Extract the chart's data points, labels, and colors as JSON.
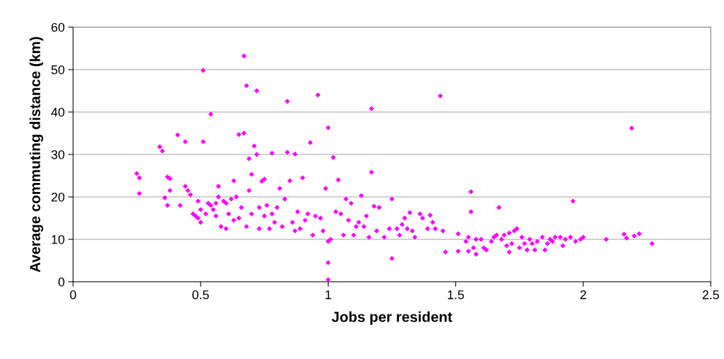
{
  "chart_data": {
    "type": "scatter",
    "xlabel": "Jobs per resident",
    "ylabel": "Average commuting distance (km)",
    "xlim": [
      0,
      2.5
    ],
    "xticks": [
      0,
      0.5,
      1,
      1.5,
      2,
      2.5
    ],
    "ylim": [
      0,
      60
    ],
    "yticks": [
      0,
      10,
      20,
      30,
      40,
      50,
      60
    ],
    "grid": "y",
    "marker": "diamond",
    "series": [
      {
        "color": "#ff00ff",
        "x": [
          0.25,
          0.26,
          0.26,
          0.34,
          0.35,
          0.36,
          0.37,
          0.37,
          0.38,
          0.38,
          0.41,
          0.42,
          0.44,
          0.44,
          0.45,
          0.46,
          0.47,
          0.48,
          0.49,
          0.49,
          0.5,
          0.5,
          0.51,
          0.51,
          0.52,
          0.53,
          0.54,
          0.54,
          0.55,
          0.56,
          0.56,
          0.57,
          0.57,
          0.58,
          0.59,
          0.6,
          0.6,
          0.61,
          0.62,
          0.63,
          0.63,
          0.64,
          0.65,
          0.65,
          0.66,
          0.67,
          0.67,
          0.68,
          0.68,
          0.69,
          0.69,
          0.7,
          0.7,
          0.71,
          0.72,
          0.72,
          0.73,
          0.73,
          0.74,
          0.75,
          0.75,
          0.76,
          0.77,
          0.78,
          0.78,
          0.79,
          0.8,
          0.81,
          0.82,
          0.83,
          0.84,
          0.84,
          0.85,
          0.86,
          0.87,
          0.87,
          0.88,
          0.89,
          0.9,
          0.91,
          0.92,
          0.93,
          0.94,
          0.95,
          0.96,
          0.97,
          0.98,
          0.99,
          1.0,
          1.0,
          1.0,
          1.0,
          1.01,
          1.02,
          1.03,
          1.04,
          1.05,
          1.06,
          1.07,
          1.08,
          1.09,
          1.1,
          1.11,
          1.12,
          1.13,
          1.14,
          1.15,
          1.16,
          1.17,
          1.17,
          1.18,
          1.19,
          1.2,
          1.22,
          1.24,
          1.25,
          1.25,
          1.27,
          1.28,
          1.29,
          1.3,
          1.31,
          1.32,
          1.33,
          1.34,
          1.36,
          1.37,
          1.39,
          1.4,
          1.41,
          1.42,
          1.44,
          1.45,
          1.46,
          1.51,
          1.51,
          1.54,
          1.55,
          1.55,
          1.56,
          1.56,
          1.57,
          1.58,
          1.58,
          1.6,
          1.61,
          1.62,
          1.64,
          1.65,
          1.66,
          1.67,
          1.68,
          1.69,
          1.7,
          1.71,
          1.71,
          1.72,
          1.73,
          1.74,
          1.75,
          1.76,
          1.77,
          1.78,
          1.79,
          1.8,
          1.81,
          1.82,
          1.84,
          1.85,
          1.86,
          1.87,
          1.88,
          1.89,
          1.91,
          1.92,
          1.93,
          1.95,
          1.96,
          1.97,
          1.99,
          2.0,
          2.09,
          2.16,
          2.17,
          2.19,
          2.2,
          2.22,
          2.27
        ],
        "values": [
          25.5,
          24.5,
          20.8,
          31.8,
          30.8,
          19.8,
          18,
          24.7,
          24.3,
          21.5,
          34.6,
          18,
          22.5,
          33,
          21.5,
          20.5,
          16,
          15.5,
          19,
          15,
          14,
          17,
          49.8,
          33,
          16,
          18.5,
          18,
          39.5,
          17,
          15.5,
          18.5,
          22.5,
          20,
          13,
          19,
          12.5,
          18.5,
          16,
          19.5,
          14.5,
          23.8,
          20,
          34.7,
          15,
          17.5,
          53.2,
          35,
          46.2,
          13,
          29,
          21.5,
          25.3,
          16,
          32,
          45,
          30,
          17.5,
          12.5,
          23.7,
          24.2,
          15.5,
          18,
          12.5,
          30.3,
          16,
          14,
          17.5,
          22,
          13,
          19.5,
          42.5,
          30.5,
          23.8,
          14,
          30.1,
          12,
          16.5,
          12.5,
          24.5,
          14.5,
          16,
          32.8,
          11,
          15.5,
          44,
          15,
          12,
          22,
          36.3,
          9.5,
          4.5,
          0.5,
          10,
          29.3,
          16.5,
          24,
          16,
          11,
          19.5,
          14.5,
          18.5,
          11,
          13,
          14,
          20.3,
          13,
          15.5,
          10.5,
          40.8,
          25.8,
          17.8,
          12,
          17.5,
          10.5,
          12.5,
          19.5,
          5.5,
          12.5,
          11,
          13.5,
          15,
          12.5,
          16.3,
          12,
          10.5,
          16,
          15,
          12.5,
          15.7,
          14,
          12.5,
          43.8,
          12,
          7,
          11.3,
          7.2,
          9.5,
          10.5,
          7.2,
          21.2,
          16.5,
          8,
          6.5,
          10,
          10,
          8,
          7.5,
          9.5,
          10.5,
          11,
          17.5,
          10,
          11,
          8.5,
          7,
          11.5,
          9,
          12,
          12.5,
          8,
          10.5,
          9,
          7.5,
          10,
          9,
          7.5,
          9.5,
          10.5,
          7.5,
          9,
          10,
          9.5,
          10.5,
          10.5,
          8.5,
          10,
          10.5,
          19,
          9.5,
          10,
          10.5,
          10,
          11.2,
          10.3,
          36.2,
          10.8,
          11.3,
          9
        ]
      }
    ]
  }
}
